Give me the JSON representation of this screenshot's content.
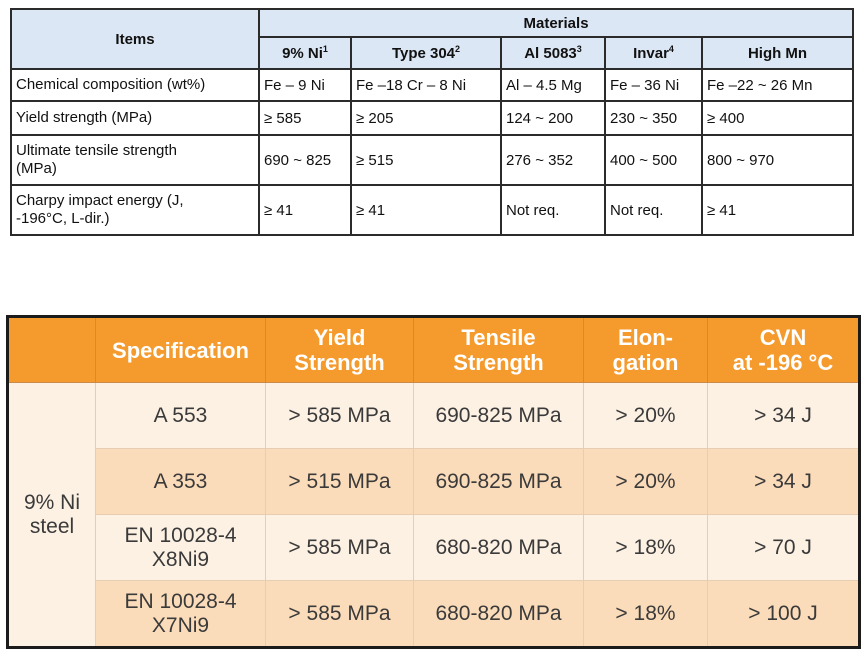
{
  "table1": {
    "items_header": "Items",
    "materials_header": "Materials",
    "materials": [
      {
        "name": "9% Ni",
        "sup": "1"
      },
      {
        "name": "Type 304",
        "sup": "2"
      },
      {
        "name": "Al 5083",
        "sup": "3"
      },
      {
        "name": "Invar",
        "sup": "4"
      },
      {
        "name": "High Mn",
        "sup": ""
      }
    ],
    "rows": [
      {
        "label": "Chemical composition (wt%)",
        "values": [
          "Fe – 9 Ni",
          "Fe –18 Cr – 8 Ni",
          "Al – 4.5 Mg",
          "Fe – 36 Ni",
          "Fe –22 ~ 26 Mn"
        ]
      },
      {
        "label": "Yield strength (MPa)",
        "values": [
          "≥ 585",
          "≥ 205",
          "124 ~ 200",
          "230 ~ 350",
          "≥ 400"
        ]
      },
      {
        "label": "Ultimate tensile strength (MPa)",
        "values": [
          "690 ~ 825",
          "≥ 515",
          "276 ~ 352",
          "400 ~ 500",
          "800 ~ 970"
        ]
      },
      {
        "label": "Charpy impact energy (J, -196°C, L-dir.)",
        "values": [
          "≥ 41",
          "≥ 41",
          "Not req.",
          "Not req.",
          "≥ 41"
        ]
      }
    ]
  },
  "table2": {
    "headers": [
      "",
      "Specification",
      "Yield Strength",
      "Tensile Strength",
      "Elon-gation",
      "CVN at -196 °C"
    ],
    "header_lines": [
      [
        ""
      ],
      [
        "Specification"
      ],
      [
        "Yield",
        "Strength"
      ],
      [
        "Tensile",
        "Strength"
      ],
      [
        "Elon-",
        "gation"
      ],
      [
        "CVN",
        "at -196 °C"
      ]
    ],
    "group_label": "9% Ni steel",
    "group_label_lines": [
      "9% Ni",
      "steel"
    ],
    "rows": [
      {
        "spec": [
          "A 553"
        ],
        "yield": "> 585 MPa",
        "tensile": "690-825 MPa",
        "elongation": "> 20%",
        "cvn": "> 34 J"
      },
      {
        "spec": [
          "A 353"
        ],
        "yield": "> 515 MPa",
        "tensile": "690-825 MPa",
        "elongation": "> 20%",
        "cvn": "> 34 J"
      },
      {
        "spec": [
          "EN 10028-4",
          "X8Ni9"
        ],
        "yield": "> 585 MPa",
        "tensile": "680-820 MPa",
        "elongation": "> 18%",
        "cvn": "> 70 J"
      },
      {
        "spec": [
          "EN 10028-4",
          "X7Ni9"
        ],
        "yield": "> 585 MPa",
        "tensile": "680-820 MPa",
        "elongation": "> 18%",
        "cvn": "> 100 J"
      }
    ],
    "colors": {
      "header": "#f59a2d",
      "row_light": "#fdf1e4",
      "row_dark": "#fbdcba"
    }
  }
}
